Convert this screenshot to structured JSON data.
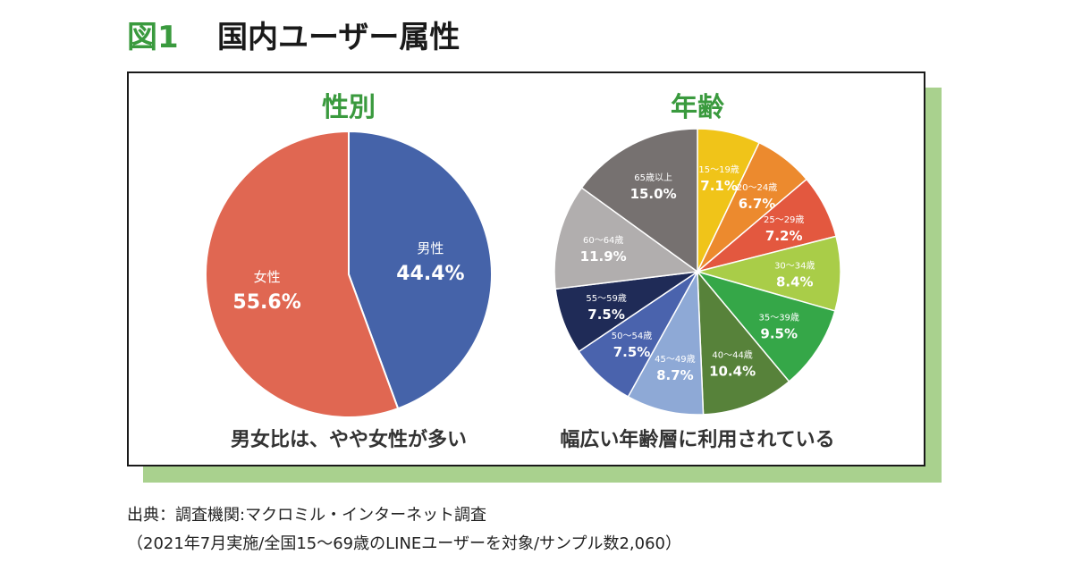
{
  "figure": {
    "number": "図1",
    "title": "国内ユーザー属性"
  },
  "colors": {
    "accent_green": "#3a9a3e",
    "shadow_green": "#a9d18e",
    "female": "#e06752",
    "male": "#4563a9"
  },
  "chart_data": [
    {
      "type": "pie",
      "title": "性別",
      "caption": "男女比は、やや女性が多い",
      "slices": [
        {
          "label": "男性",
          "value": 44.4,
          "display": "44.4%",
          "color": "#4563a9"
        },
        {
          "label": "女性",
          "value": 55.6,
          "display": "55.6%",
          "color": "#e06752"
        }
      ]
    },
    {
      "type": "pie",
      "title": "年齢",
      "caption": "幅広い年齢層に利用されている",
      "slices": [
        {
          "label": "15〜19歳",
          "value": 7.1,
          "display": "7.1%",
          "color": "#f0c419"
        },
        {
          "label": "20〜24歳",
          "value": 6.7,
          "display": "6.7%",
          "color": "#ec8a2e"
        },
        {
          "label": "25〜29歳",
          "value": 7.2,
          "display": "7.2%",
          "color": "#e3583f"
        },
        {
          "label": "30〜34歳",
          "value": 8.4,
          "display": "8.4%",
          "color": "#a9cd48"
        },
        {
          "label": "35〜39歳",
          "value": 9.5,
          "display": "9.5%",
          "color": "#35a748"
        },
        {
          "label": "40〜44歳",
          "value": 10.4,
          "display": "10.4%",
          "color": "#57823a"
        },
        {
          "label": "45〜49歳",
          "value": 8.7,
          "display": "8.7%",
          "color": "#8ea9d6"
        },
        {
          "label": "50〜54歳",
          "value": 7.5,
          "display": "7.5%",
          "color": "#4a63ad"
        },
        {
          "label": "55〜59歳",
          "value": 7.5,
          "display": "7.5%",
          "color": "#1f2b57"
        },
        {
          "label": "60〜64歳",
          "value": 11.9,
          "display": "11.9%",
          "color": "#b1aeae"
        },
        {
          "label": "65歳以上",
          "value": 15.0,
          "display": "15.0%",
          "color": "#767170"
        }
      ]
    }
  ],
  "source": {
    "line1": "出典：調査機関:マクロミル・インターネット調査",
    "line2": "（2021年7月実施/全国15〜69歳のLINEユーザーを対象/サンプル数2,060）"
  }
}
